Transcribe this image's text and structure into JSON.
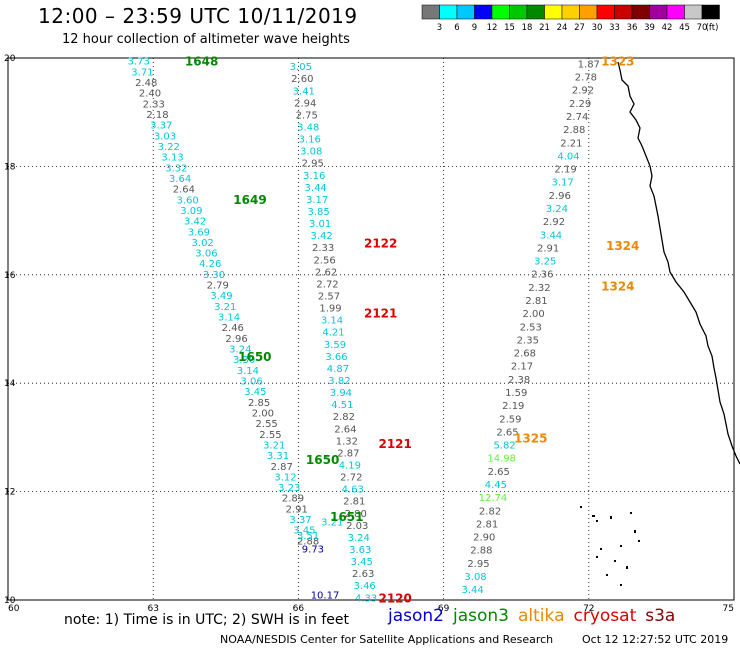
{
  "header": {
    "title": "12:00 – 23:59 UTC 10/11/2019",
    "subtitle": "12 hour collection of altimeter wave heights"
  },
  "colorbar": {
    "colors": [
      "#777777",
      "#00ffff",
      "#00c8ff",
      "#0000ff",
      "#00ff00",
      "#00c800",
      "#008800",
      "#ffff00",
      "#ffd000",
      "#ffa000",
      "#ff0000",
      "#c80000",
      "#800000",
      "#a000a0",
      "#ff00ff",
      "#c8c8c8",
      "#000000"
    ],
    "labels": [
      "3",
      "6",
      "9",
      "12",
      "15",
      "18",
      "21",
      "24",
      "27",
      "30",
      "33",
      "36",
      "39",
      "42",
      "45",
      "70"
    ],
    "unit": "(ft)"
  },
  "axes": {
    "lat_ticks": [
      "20",
      "18",
      "16",
      "14",
      "12",
      "10"
    ],
    "lon_ticks": [
      "60",
      "63",
      "66",
      "69",
      "72",
      "75"
    ]
  },
  "tracks": {
    "colors": {
      "grey": "#555555",
      "cyan": "#00c8d8",
      "green": "#008800",
      "red": "#dd0000",
      "orange": "#ee8800",
      "blue": "#000099",
      "lime": "#66ee44"
    },
    "labels": [
      {
        "text": "1648",
        "color": "green",
        "lon": 64.0,
        "lat": 19.95
      },
      {
        "text": "1649",
        "color": "green",
        "lon": 65.0,
        "lat": 17.4
      },
      {
        "text": "1650",
        "color": "green",
        "lon": 65.1,
        "lat": 14.5
      },
      {
        "text": "1650",
        "color": "green",
        "lon": 66.5,
        "lat": 12.6
      },
      {
        "text": "1651",
        "color": "green",
        "lon": 67.0,
        "lat": 11.55
      },
      {
        "text": "2120",
        "color": "red",
        "lon": 68.0,
        "lat": 10.05
      },
      {
        "text": "2121",
        "color": "red",
        "lon": 68.0,
        "lat": 12.9
      },
      {
        "text": "2121",
        "color": "red",
        "lon": 67.7,
        "lat": 15.3
      },
      {
        "text": "2122",
        "color": "red",
        "lon": 67.7,
        "lat": 16.6
      },
      {
        "text": "1323",
        "color": "orange",
        "lon": 72.6,
        "lat": 19.95
      },
      {
        "text": "1324",
        "color": "orange",
        "lon": 72.7,
        "lat": 16.55
      },
      {
        "text": "1324",
        "color": "orange",
        "lon": 72.6,
        "lat": 15.8
      },
      {
        "text": "1325",
        "color": "orange",
        "lon": 70.8,
        "lat": 13.0
      }
    ],
    "track_a": {
      "lon_start": 62.7,
      "lat_start": 19.95,
      "lon_end": 66.2,
      "lat_end": 11.1,
      "values": [
        {
          "v": "3.73",
          "c": "cyan"
        },
        {
          "v": "3.71",
          "c": "cyan"
        },
        {
          "v": "2.48",
          "c": "grey"
        },
        {
          "v": "2.40",
          "c": "grey"
        },
        {
          "v": "2.33",
          "c": "grey"
        },
        {
          "v": "2.18",
          "c": "grey"
        },
        {
          "v": "3.37",
          "c": "cyan"
        },
        {
          "v": "3.03",
          "c": "cyan"
        },
        {
          "v": "3.22",
          "c": "cyan"
        },
        {
          "v": "3.13",
          "c": "cyan"
        },
        {
          "v": "3.32",
          "c": "cyan"
        },
        {
          "v": "3.64",
          "c": "cyan"
        },
        {
          "v": "2.64",
          "c": "grey"
        },
        {
          "v": "3.60",
          "c": "cyan"
        },
        {
          "v": "3.09",
          "c": "cyan"
        },
        {
          "v": "3.42",
          "c": "cyan"
        },
        {
          "v": "3.69",
          "c": "cyan"
        },
        {
          "v": "3.02",
          "c": "cyan"
        },
        {
          "v": "3.06",
          "c": "cyan"
        },
        {
          "v": "4.26",
          "c": "cyan"
        },
        {
          "v": "3.30",
          "c": "cyan"
        },
        {
          "v": "2.79",
          "c": "grey"
        },
        {
          "v": "3.49",
          "c": "cyan"
        },
        {
          "v": "3.21",
          "c": "cyan"
        },
        {
          "v": "3.14",
          "c": "cyan"
        },
        {
          "v": "2.46",
          "c": "grey"
        },
        {
          "v": "2.96",
          "c": "grey"
        },
        {
          "v": "3.24",
          "c": "cyan"
        },
        {
          "v": "3.30",
          "c": "cyan"
        },
        {
          "v": "3.14",
          "c": "cyan"
        },
        {
          "v": "3.06",
          "c": "cyan"
        },
        {
          "v": "3.45",
          "c": "cyan"
        },
        {
          "v": "2.85",
          "c": "grey"
        },
        {
          "v": "2.00",
          "c": "grey"
        },
        {
          "v": "2.55",
          "c": "grey"
        },
        {
          "v": "2.55",
          "c": "grey"
        },
        {
          "v": "3.21",
          "c": "cyan"
        },
        {
          "v": "3.31",
          "c": "cyan"
        },
        {
          "v": "2.87",
          "c": "grey"
        },
        {
          "v": "3.12",
          "c": "cyan"
        },
        {
          "v": "3.23",
          "c": "cyan"
        },
        {
          "v": "2.89",
          "c": "grey"
        },
        {
          "v": "2.91",
          "c": "grey"
        },
        {
          "v": "3.37",
          "c": "cyan"
        },
        {
          "v": "3.45",
          "c": "cyan"
        },
        {
          "v": "2.88",
          "c": "grey"
        }
      ]
    },
    "track_b": {
      "lon_start": 66.05,
      "lat_start": 19.85,
      "lon_end": 67.4,
      "lat_end": 10.05,
      "values": [
        {
          "v": "3.05",
          "c": "cyan"
        },
        {
          "v": "2.60",
          "c": "grey"
        },
        {
          "v": "3.41",
          "c": "cyan"
        },
        {
          "v": "2.94",
          "c": "grey"
        },
        {
          "v": "2.75",
          "c": "grey"
        },
        {
          "v": "3.48",
          "c": "cyan"
        },
        {
          "v": "3.16",
          "c": "cyan"
        },
        {
          "v": "3.08",
          "c": "cyan"
        },
        {
          "v": "2.95",
          "c": "grey"
        },
        {
          "v": "3.16",
          "c": "cyan"
        },
        {
          "v": "3.44",
          "c": "cyan"
        },
        {
          "v": "3.17",
          "c": "cyan"
        },
        {
          "v": "3.85",
          "c": "cyan"
        },
        {
          "v": "3.01",
          "c": "cyan"
        },
        {
          "v": "3.42",
          "c": "cyan"
        },
        {
          "v": "2.33",
          "c": "grey"
        },
        {
          "v": "2.56",
          "c": "grey"
        },
        {
          "v": "2.62",
          "c": "grey"
        },
        {
          "v": "2.72",
          "c": "grey"
        },
        {
          "v": "2.57",
          "c": "grey"
        },
        {
          "v": "1.99",
          "c": "grey"
        },
        {
          "v": "3.14",
          "c": "cyan"
        },
        {
          "v": "4.21",
          "c": "cyan"
        },
        {
          "v": "3.59",
          "c": "cyan"
        },
        {
          "v": "3.66",
          "c": "cyan"
        },
        {
          "v": "4.87",
          "c": "cyan"
        },
        {
          "v": "3.82",
          "c": "cyan"
        },
        {
          "v": "3.94",
          "c": "cyan"
        },
        {
          "v": "4.51",
          "c": "cyan"
        },
        {
          "v": "2.82",
          "c": "grey"
        },
        {
          "v": "2.64",
          "c": "grey"
        },
        {
          "v": "1.32",
          "c": "grey"
        },
        {
          "v": "2.87",
          "c": "grey"
        },
        {
          "v": "4.19",
          "c": "cyan"
        },
        {
          "v": "2.72",
          "c": "grey"
        },
        {
          "v": "4.63",
          "c": "cyan"
        },
        {
          "v": "2.81",
          "c": "grey"
        },
        {
          "v": "2.80",
          "c": "grey"
        },
        {
          "v": "2.03",
          "c": "grey"
        },
        {
          "v": "3.24",
          "c": "cyan"
        },
        {
          "v": "3.63",
          "c": "cyan"
        },
        {
          "v": "3.45",
          "c": "cyan"
        },
        {
          "v": "2.63",
          "c": "grey"
        },
        {
          "v": "3.46",
          "c": "cyan"
        },
        {
          "v": "4.33",
          "c": "cyan"
        }
      ]
    },
    "track_c": {
      "lon_start": 72.0,
      "lat_start": 19.9,
      "lon_end": 69.6,
      "lat_end": 10.2,
      "values": [
        {
          "v": "1.87",
          "c": "grey"
        },
        {
          "v": "2.78",
          "c": "grey"
        },
        {
          "v": "2.92",
          "c": "grey"
        },
        {
          "v": "2.29",
          "c": "grey"
        },
        {
          "v": "2.74",
          "c": "grey"
        },
        {
          "v": "2.88",
          "c": "grey"
        },
        {
          "v": "2.21",
          "c": "grey"
        },
        {
          "v": "4.04",
          "c": "cyan"
        },
        {
          "v": "2.19",
          "c": "grey"
        },
        {
          "v": "3.17",
          "c": "cyan"
        },
        {
          "v": "2.96",
          "c": "grey"
        },
        {
          "v": "3.24",
          "c": "cyan"
        },
        {
          "v": "2.92",
          "c": "grey"
        },
        {
          "v": "3.44",
          "c": "cyan"
        },
        {
          "v": "2.91",
          "c": "grey"
        },
        {
          "v": "3.25",
          "c": "cyan"
        },
        {
          "v": "2.36",
          "c": "grey"
        },
        {
          "v": "2.32",
          "c": "grey"
        },
        {
          "v": "2.81",
          "c": "grey"
        },
        {
          "v": "2.00",
          "c": "grey"
        },
        {
          "v": "2.53",
          "c": "grey"
        },
        {
          "v": "2.35",
          "c": "grey"
        },
        {
          "v": "2.68",
          "c": "grey"
        },
        {
          "v": "2.17",
          "c": "grey"
        },
        {
          "v": "2.38",
          "c": "grey"
        },
        {
          "v": "1.59",
          "c": "grey"
        },
        {
          "v": "2.19",
          "c": "grey"
        },
        {
          "v": "2.59",
          "c": "grey"
        },
        {
          "v": "2.65",
          "c": "grey"
        },
        {
          "v": "5.82",
          "c": "cyan"
        },
        {
          "v": "14.98",
          "c": "lime"
        },
        {
          "v": "2.65",
          "c": "grey"
        },
        {
          "v": "4.45",
          "c": "cyan"
        },
        {
          "v": "12.74",
          "c": "lime"
        },
        {
          "v": "2.82",
          "c": "grey"
        },
        {
          "v": "2.81",
          "c": "grey"
        },
        {
          "v": "2.90",
          "c": "grey"
        },
        {
          "v": "2.88",
          "c": "grey"
        },
        {
          "v": "2.95",
          "c": "grey"
        },
        {
          "v": "3.08",
          "c": "cyan"
        },
        {
          "v": "3.44",
          "c": "cyan"
        }
      ]
    },
    "extras": [
      {
        "v": "9.73",
        "c": "blue",
        "lon": 66.3,
        "lat": 10.95
      },
      {
        "v": "10.17",
        "c": "blue",
        "lon": 66.55,
        "lat": 10.1
      },
      {
        "v": "3.21",
        "c": "cyan",
        "lon": 66.7,
        "lat": 11.45
      },
      {
        "v": "3.51",
        "c": "cyan",
        "lon": 66.2,
        "lat": 11.2
      }
    ]
  },
  "footer": {
    "note": "note:  1) Time is in UTC;  2) SWH is in feet",
    "satellites": [
      {
        "name": "jason2",
        "color": "#0000cc"
      },
      {
        "name": "jason3",
        "color": "#008800"
      },
      {
        "name": "altika",
        "color": "#ee8800"
      },
      {
        "name": "cryosat",
        "color": "#dd0000"
      },
      {
        "name": "s3a",
        "color": "#880000"
      }
    ],
    "credit": "NOAA/NESDIS Center for Satellite Applications and Research",
    "timestamp": "Oct 12 12:27:52 UTC 2019"
  }
}
